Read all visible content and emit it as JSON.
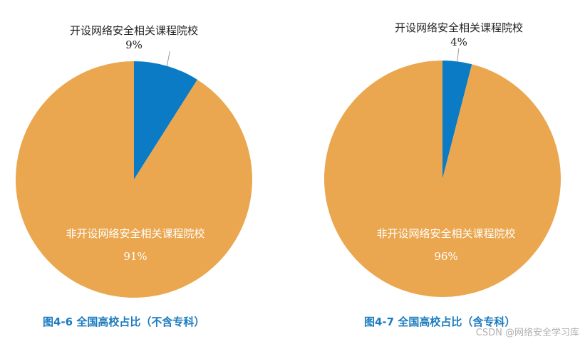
{
  "chart_data": [
    {
      "type": "pie",
      "title": "图4-6 全国高校占比（不含专科）",
      "categories": [
        "开设网络安全相关课程院校",
        "非开设网络安全相关课程院校"
      ],
      "values": [
        9,
        91
      ],
      "unit": "%",
      "colors": [
        "#0a7bc4",
        "#eaa74f"
      ],
      "labels": {
        "slice1_name": "开设网络安全相关课程院校",
        "slice1_pct": "9%",
        "slice2_name": "非开设网络安全相关课程院校",
        "slice2_pct": "91%"
      }
    },
    {
      "type": "pie",
      "title": "图4-7 全国高校占比（含专科）",
      "categories": [
        "开设网络安全相关课程院校",
        "非开设网络安全相关课程院校"
      ],
      "values": [
        4,
        96
      ],
      "unit": "%",
      "colors": [
        "#0a7bc4",
        "#eaa74f"
      ],
      "labels": {
        "slice1_name": "开设网络安全相关课程院校",
        "slice1_pct": "4%",
        "slice2_name": "非开设网络安全相关课程院校",
        "slice2_pct": "96%"
      }
    }
  ],
  "captions": {
    "left": "图4-6  全国高校占比（不含专科）",
    "right": "图4-7  全国高校占比（含专科）"
  },
  "watermark": "CSDN @网络安全学习库"
}
